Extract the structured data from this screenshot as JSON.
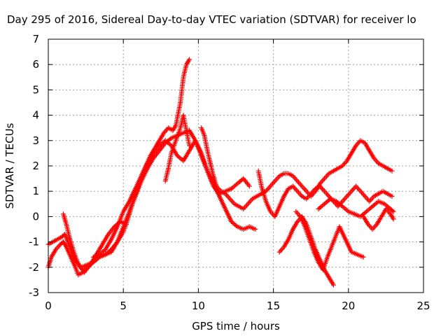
{
  "chart_data": {
    "type": "scatter",
    "title": "Day 295 of 2016, Sidereal Day-to-day VTEC variation (SDTVAR) for receiver lo",
    "xlabel": "GPS time / hours",
    "ylabel": "SDTVAR / TECUs",
    "xlim": [
      0,
      25
    ],
    "ylim": [
      -3,
      7
    ],
    "xticks": [
      "0",
      "5",
      "10",
      "15",
      "20",
      "25"
    ],
    "yticks": [
      "-3",
      "-2",
      "-1",
      "0",
      "1",
      "2",
      "3",
      "4",
      "5",
      "6",
      "7"
    ],
    "grid": true,
    "marker": "+",
    "color": "#ff0000",
    "series": [
      {
        "x": [
          0.0,
          0.3,
          0.6,
          0.9,
          1.1,
          1.3,
          1.6,
          1.9,
          2.2,
          2.6,
          3.0,
          3.4,
          3.8,
          4.2,
          4.6,
          5.0,
          5.3,
          5.6,
          5.9,
          6.2,
          6.5,
          6.8,
          7.1,
          7.4,
          7.7,
          8.0,
          8.3,
          8.5,
          8.8,
          9.0,
          9.2,
          9.4
        ],
        "y": [
          -1.1,
          -1.0,
          -0.9,
          -0.8,
          -0.7,
          -1.0,
          -1.5,
          -1.8,
          -2.0,
          -1.9,
          -1.8,
          -1.6,
          -1.5,
          -1.3,
          -1.0,
          -0.6,
          -0.1,
          0.5,
          1.0,
          1.6,
          2.0,
          2.4,
          2.7,
          3.0,
          3.3,
          3.5,
          3.4,
          3.6,
          4.5,
          5.5,
          6.0,
          6.2
        ]
      },
      {
        "x": [
          0.0,
          0.2,
          0.5,
          0.8,
          1.0,
          1.2,
          1.5,
          1.8,
          2.0,
          2.3,
          2.6,
          3.0,
          3.4,
          3.8,
          4.2,
          4.6,
          5.0,
          5.4,
          5.8,
          6.2,
          6.6,
          7.0,
          7.4,
          7.8,
          8.2,
          8.6,
          9.0,
          9.4,
          9.8,
          10.2,
          10.6,
          11.0,
          11.4,
          11.8,
          12.2,
          12.6,
          13.0,
          13.4,
          13.8
        ],
        "y": [
          -2.0,
          -1.6,
          -1.3,
          -1.1,
          -1.0,
          -1.2,
          -1.6,
          -2.0,
          -2.3,
          -2.2,
          -2.0,
          -1.8,
          -1.6,
          -1.5,
          -1.4,
          -1.0,
          -0.4,
          0.2,
          0.8,
          1.4,
          1.9,
          2.3,
          2.6,
          2.9,
          3.1,
          3.2,
          3.3,
          3.4,
          3.0,
          2.4,
          1.8,
          1.3,
          0.8,
          0.3,
          -0.2,
          -0.4,
          -0.5,
          -0.4,
          -0.5
        ]
      },
      {
        "x": [
          1.0,
          1.2,
          1.4,
          1.7,
          2.0,
          2.4,
          2.8,
          3.2,
          3.6,
          4.0,
          4.4,
          4.8,
          5.2
        ],
        "y": [
          0.1,
          -0.3,
          -0.8,
          -1.4,
          -1.9,
          -2.2,
          -1.9,
          -1.5,
          -1.1,
          -0.7,
          -0.4,
          -0.2,
          -0.3
        ]
      },
      {
        "x": [
          3.0,
          3.4,
          3.8,
          4.2,
          4.6,
          5.0,
          5.4,
          5.8,
          6.2,
          6.6,
          7.0,
          7.4,
          7.8,
          8.2,
          8.6,
          9.0,
          9.4,
          9.8,
          10.2,
          10.6,
          11.0,
          11.4,
          11.8,
          12.2,
          12.6,
          13.0,
          13.4
        ],
        "y": [
          -1.6,
          -1.5,
          -1.3,
          -0.9,
          -0.4,
          0.2,
          0.6,
          1.1,
          1.6,
          2.1,
          2.5,
          2.8,
          3.0,
          2.8,
          2.4,
          2.2,
          2.6,
          3.0,
          2.5,
          1.8,
          1.2,
          0.9,
          1.0,
          1.1,
          1.3,
          1.5,
          1.2
        ]
      },
      {
        "x": [
          7.8,
          8.0,
          8.2,
          8.5,
          8.8,
          9.0,
          9.2,
          9.4
        ],
        "y": [
          1.4,
          1.9,
          2.5,
          3.0,
          3.5,
          4.0,
          3.4,
          2.8
        ]
      },
      {
        "x": [
          10.2,
          10.4,
          10.6,
          10.8,
          11.0,
          11.2,
          11.5,
          11.8,
          12.1,
          12.4,
          12.7,
          13.0,
          13.3,
          13.6,
          13.9,
          14.2,
          14.5,
          14.8,
          15.1,
          15.4,
          15.7,
          16.0,
          16.3,
          16.6,
          16.9,
          17.2,
          17.5,
          17.8,
          18.1,
          18.4,
          18.7,
          19.0,
          19.3,
          19.6,
          19.9,
          20.2,
          20.5,
          20.8,
          21.1,
          21.4,
          21.7,
          22.0,
          22.3,
          22.6,
          22.9
        ],
        "y": [
          3.5,
          3.2,
          2.6,
          2.1,
          1.6,
          1.2,
          1.0,
          0.9,
          0.7,
          0.5,
          0.4,
          0.3,
          0.5,
          0.7,
          0.8,
          0.9,
          1.0,
          1.2,
          1.4,
          1.6,
          1.7,
          1.7,
          1.6,
          1.4,
          1.2,
          1.0,
          0.8,
          1.0,
          1.3,
          1.5,
          1.7,
          1.8,
          1.9,
          2.0,
          2.2,
          2.5,
          2.8,
          3.0,
          2.9,
          2.6,
          2.3,
          2.1,
          2.0,
          1.9,
          1.8
        ]
      },
      {
        "x": [
          14.0,
          14.2,
          14.5,
          14.8,
          15.1,
          15.4,
          15.7,
          16.0,
          16.3,
          16.6,
          16.9,
          17.2,
          17.5,
          17.8,
          18.1,
          18.4,
          18.7,
          19.0,
          19.3,
          19.6,
          19.9,
          20.2,
          20.5,
          20.8,
          21.1,
          21.4,
          21.7,
          22.0,
          22.3,
          22.6,
          22.9
        ],
        "y": [
          1.8,
          1.2,
          0.6,
          0.2,
          0.0,
          0.4,
          0.8,
          1.1,
          1.2,
          1.0,
          0.8,
          0.7,
          0.9,
          1.1,
          1.2,
          1.0,
          0.8,
          0.6,
          0.4,
          0.6,
          0.8,
          1.0,
          1.2,
          1.0,
          0.8,
          0.6,
          0.8,
          0.9,
          1.0,
          0.9,
          0.8
        ]
      },
      {
        "x": [
          15.4,
          15.7,
          16.0,
          16.3,
          16.6,
          16.9,
          17.2,
          17.5,
          17.8,
          18.1,
          18.4,
          18.7,
          19.0
        ],
        "y": [
          -1.4,
          -1.2,
          -0.9,
          -0.5,
          -0.2,
          0.0,
          -0.3,
          -0.8,
          -1.3,
          -1.7,
          -2.1,
          -2.4,
          -2.7
        ]
      },
      {
        "x": [
          16.5,
          16.8,
          17.1,
          17.4,
          17.7,
          18.0,
          18.3,
          18.6,
          19.0,
          19.4,
          19.8,
          20.2,
          20.6,
          21.0
        ],
        "y": [
          0.2,
          0.0,
          -0.4,
          -0.9,
          -1.4,
          -1.8,
          -2.1,
          -1.6,
          -1.0,
          -0.4,
          -0.9,
          -1.4,
          -1.5,
          -1.6
        ]
      },
      {
        "x": [
          18.0,
          18.4,
          18.8,
          19.2,
          19.6,
          20.0,
          20.4,
          20.8,
          21.2,
          21.6,
          22.0,
          22.4,
          22.8,
          23.0
        ],
        "y": [
          0.3,
          0.5,
          0.7,
          0.6,
          0.4,
          0.2,
          0.1,
          0.0,
          0.2,
          0.4,
          0.6,
          0.5,
          0.3,
          0.2
        ]
      },
      {
        "x": [
          21.0,
          21.3,
          21.6,
          21.9,
          22.2,
          22.5,
          22.8,
          23.0
        ],
        "y": [
          0.0,
          -0.3,
          -0.5,
          -0.3,
          0.0,
          0.3,
          0.1,
          -0.1
        ]
      }
    ]
  }
}
